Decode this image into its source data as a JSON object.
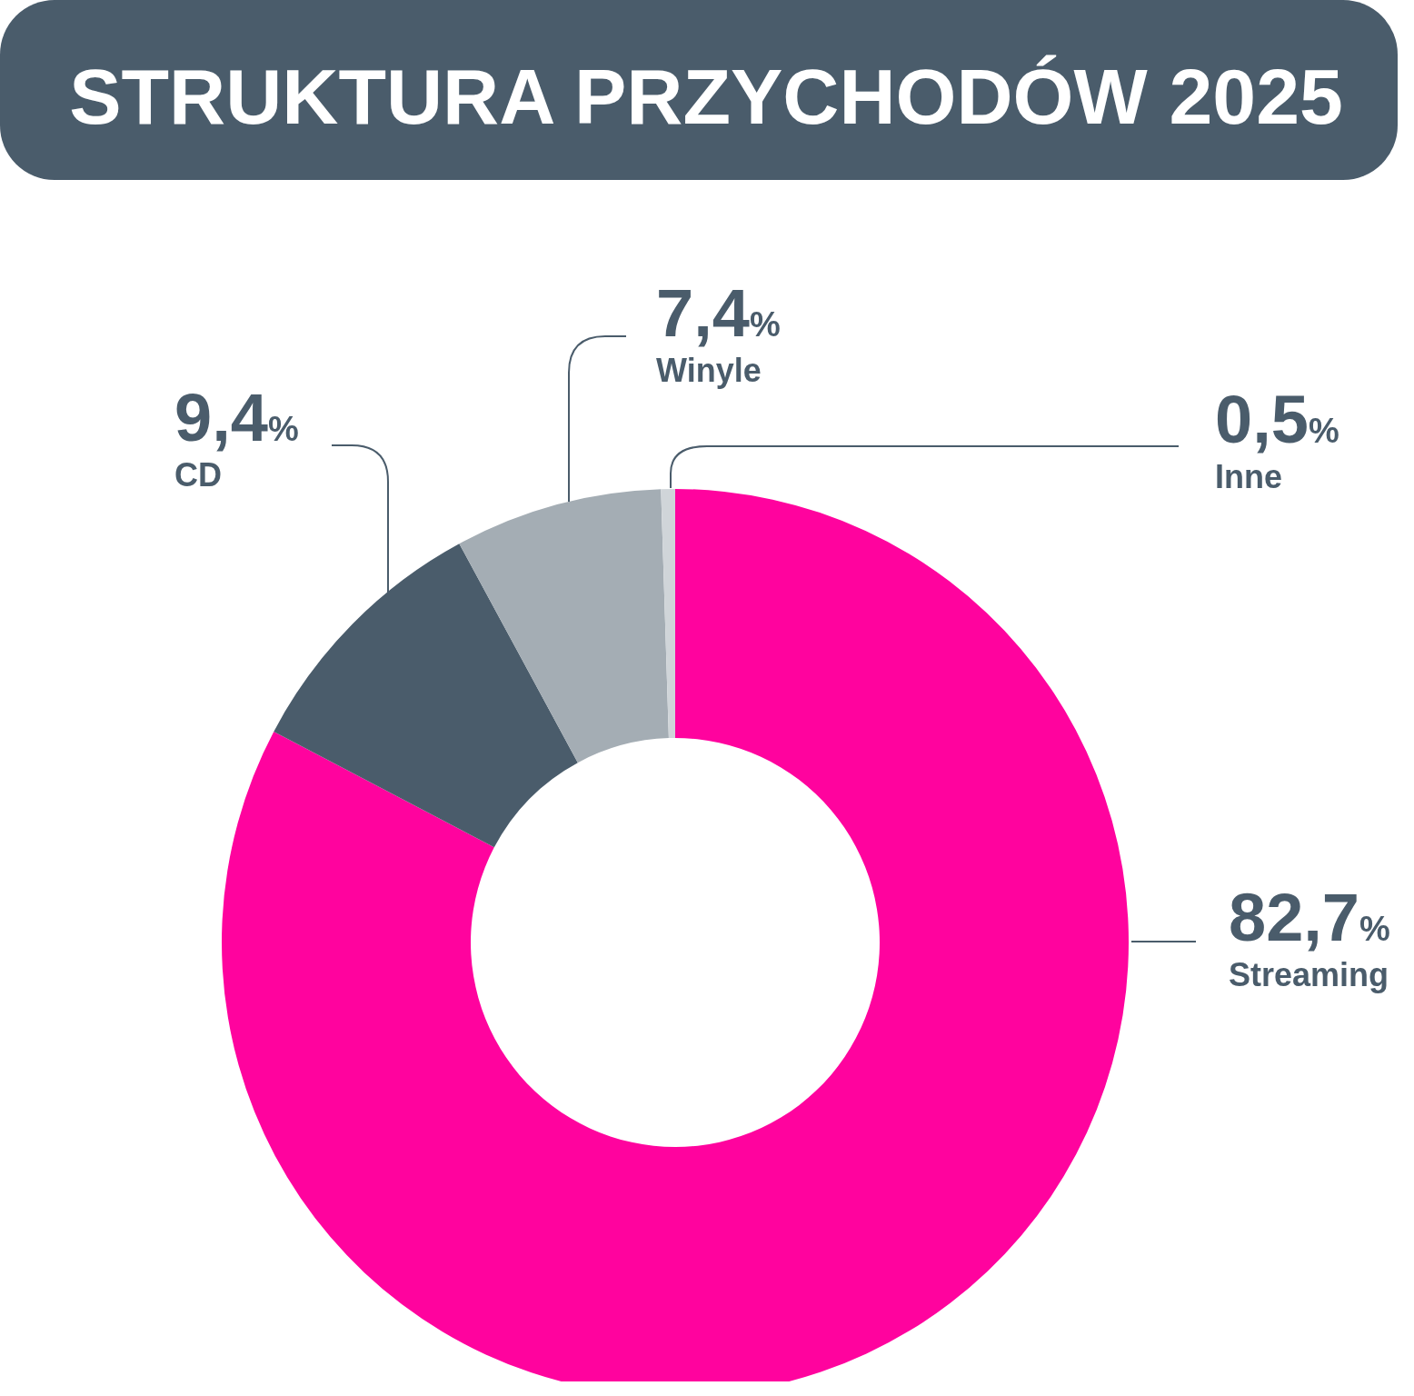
{
  "chart_data": {
    "type": "donut",
    "title": "STRUKTURA PRZYCHODÓW 2025",
    "categories": [
      "Streaming",
      "CD",
      "Winyle",
      "Inne"
    ],
    "values": [
      82.7,
      9.4,
      7.4,
      0.5
    ],
    "colors": [
      "#ff039e",
      "#4a5c6b",
      "#a4adb4",
      "#d0d5d9"
    ],
    "value_labels": [
      "82,7%",
      "9,4%",
      "7,4%",
      "0,5%"
    ]
  }
}
